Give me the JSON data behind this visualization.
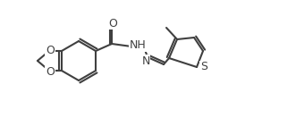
{
  "bg_color": "#ffffff",
  "line_color": "#404040",
  "line_width": 1.5,
  "font_size": 9,
  "atoms": {
    "O_top": "O",
    "NH": "NH",
    "N": "N",
    "S": "S",
    "O1": "O",
    "O2": "O"
  },
  "figsize": [
    3.4,
    1.32
  ],
  "dpi": 100
}
